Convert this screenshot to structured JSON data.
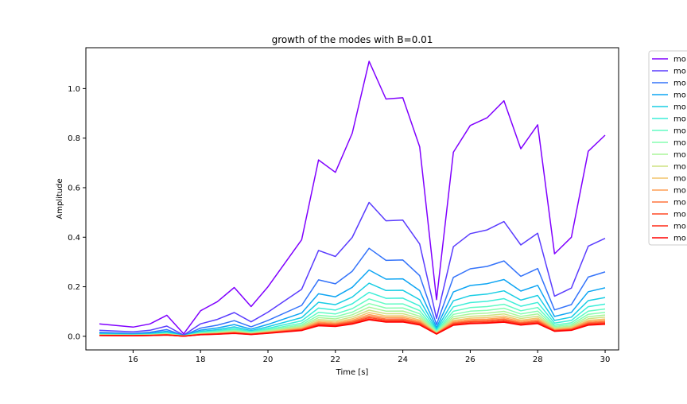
{
  "chart_data": {
    "type": "line",
    "title": "growth of the modes with B=0.01",
    "xlabel": "Time [s]",
    "ylabel": "Amplitude",
    "xlim": [
      14.6,
      30.4
    ],
    "ylim": [
      -0.055,
      1.165
    ],
    "xticks": [
      16,
      18,
      20,
      22,
      24,
      26,
      28,
      30
    ],
    "yticks": [
      0.0,
      0.2,
      0.4,
      0.6,
      0.8,
      1.0
    ],
    "xtick_labels": [
      "16",
      "18",
      "20",
      "22",
      "24",
      "26",
      "28",
      "30"
    ],
    "ytick_labels": [
      "0.0",
      "0.2",
      "0.4",
      "0.6",
      "0.8",
      "1.0"
    ],
    "grid": false,
    "legend_position": "upper right, outside plot area (clipped)",
    "legend_labels": [
      "mo",
      "mo",
      "mo",
      "mo",
      "mo",
      "mo",
      "mo",
      "mo",
      "mo",
      "mo",
      "mo",
      "mo",
      "mo",
      "mo",
      "mo",
      "mo"
    ],
    "series_count": 16,
    "x": [
      15,
      16,
      16.5,
      17,
      17.5,
      18,
      18.5,
      19,
      19.5,
      20,
      21,
      21.5,
      22,
      22.5,
      23,
      23.5,
      24,
      24.5,
      25,
      25.5,
      26,
      26.5,
      27,
      27.5,
      28,
      28.5,
      29,
      29.5,
      30
    ],
    "base_values": [
      0.05,
      0.037,
      0.05,
      0.085,
      0.01,
      0.103,
      0.14,
      0.197,
      0.12,
      0.2,
      0.39,
      0.712,
      0.662,
      0.82,
      1.11,
      0.958,
      0.963,
      0.765,
      0.148,
      0.743,
      0.851,
      0.882,
      0.951,
      0.757,
      0.854,
      0.333,
      0.4,
      0.747,
      0.812
    ],
    "series_scale_factors": [
      1.0,
      0.487,
      0.32,
      0.241,
      0.193,
      0.16,
      0.136,
      0.119,
      0.106,
      0.095,
      0.086,
      0.079,
      0.073,
      0.068,
      0.063,
      0.06
    ],
    "series_colors": [
      "#8000ff",
      "#5a3cfe",
      "#3473fa",
      "#0ea5f3",
      "#18cde4",
      "#3deed8",
      "#62fbc4",
      "#86feb0",
      "#aaf59a",
      "#cee282",
      "#f2c46a",
      "#ff9e53",
      "#ff733d",
      "#ff4825",
      "#ff2a16",
      "#ff0000"
    ]
  }
}
